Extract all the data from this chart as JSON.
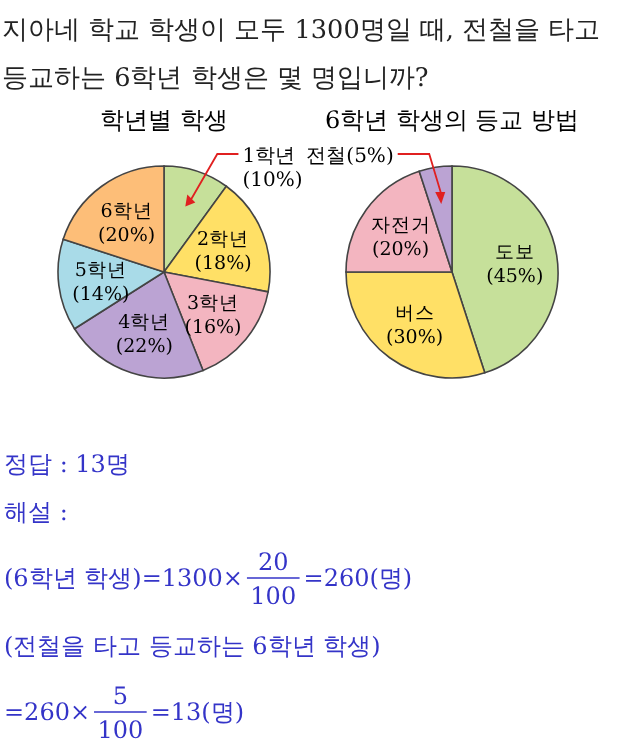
{
  "chart_data": [
    {
      "type": "other",
      "annotations": [
        "지아네 학교 학생이 모두 1300명일 때, 전철을 타고",
        "등교하는 6학년 학생은 몇 명입니까?"
      ]
    },
    {
      "type": "pie",
      "title": "학년별 학생",
      "categories": [
        "1학년",
        "2학년",
        "3학년",
        "4학년",
        "5학년",
        "6학년"
      ],
      "values": [
        10,
        18,
        16,
        22,
        14,
        20
      ],
      "value_labels": [
        "(10%)",
        "(18%)",
        "(16%)",
        "(22%)",
        "(14%)",
        "(20%)"
      ],
      "colors": [
        "#c6e09a",
        "#ffe066",
        "#f3b5c0",
        "#bba3d3",
        "#a9dbe8",
        "#fdbe78"
      ]
    },
    {
      "type": "pie",
      "title": "6학년 학생의 등교 방법",
      "categories": [
        "도보",
        "버스",
        "자전거",
        "전철"
      ],
      "values": [
        45,
        30,
        20,
        5
      ],
      "value_labels": [
        "(45%)",
        "(30%)",
        "(20%)",
        "(5%)"
      ],
      "colors": [
        "#c6e09a",
        "#ffe066",
        "#f3b5c0",
        "#bba3d3"
      ]
    },
    {
      "type": "other",
      "annotations": [
        "정답 : 13명",
        "해설 :",
        "(6학년 학생)=1300×",
        "20",
        "100",
        "=260(명)",
        "(전철을 타고 등교하는 6학년 학생)",
        "=260×",
        "5",
        "100",
        "=13(명)"
      ]
    }
  ]
}
